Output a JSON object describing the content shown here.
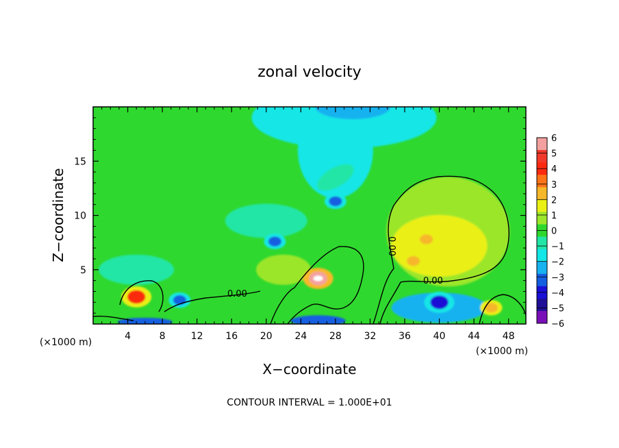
{
  "chart_data": {
    "type": "heatmap",
    "title": "zonal velocity",
    "xlabel": "X−coordinate",
    "ylabel": "Z−coordinate",
    "x_unit_left": "(×1000 m)",
    "x_unit_right": "(×1000 m)",
    "footer": "CONTOUR INTERVAL = 1.000E+01",
    "xlim": [
      0,
      50
    ],
    "ylim": [
      0,
      20
    ],
    "x_ticks": [
      4,
      8,
      12,
      16,
      20,
      24,
      28,
      32,
      36,
      40,
      44,
      48
    ],
    "x_tick_labels": [
      "4",
      "8",
      "12",
      "16",
      "20",
      "24",
      "28",
      "32",
      "36",
      "40",
      "44",
      "48"
    ],
    "y_ticks": [
      5,
      10,
      15
    ],
    "y_tick_labels": [
      "5",
      "10",
      "15"
    ],
    "contour_labels": [
      "0.00",
      "0.00",
      "0.00"
    ],
    "colorbar": {
      "levels": [
        6,
        5,
        4,
        3,
        2,
        1,
        0,
        -1,
        -2,
        -3,
        -4,
        -5,
        -6
      ],
      "labels": [
        "6",
        "5",
        "4",
        "3",
        "2",
        "1",
        "0",
        "−1",
        "−2",
        "−3",
        "−4",
        "−5",
        "−6"
      ],
      "colors": [
        "#f4a0a0",
        "#f23a2a",
        "#fb2a10",
        "#fd7418",
        "#f6b72a",
        "#eaf016",
        "#9ce62c",
        "#2fd82e",
        "#22e6a6",
        "#13e6e6",
        "#17b2f0",
        "#145ee0",
        "#1a10d6",
        "#201098",
        "#7a10b8"
      ]
    },
    "features": [
      {
        "x": 5,
        "z": 2.5,
        "value": 4
      },
      {
        "x": 10,
        "z": 2.2,
        "value": -3
      },
      {
        "x": 21,
        "z": 7.6,
        "value": -3
      },
      {
        "x": 26,
        "z": 4.2,
        "value": 6
      },
      {
        "x": 28,
        "z": 11.3,
        "value": -3
      },
      {
        "x": 38.5,
        "z": 7.8,
        "value": 3
      },
      {
        "x": 37,
        "z": 5.8,
        "value": 3
      },
      {
        "x": 40,
        "z": 2.0,
        "value": -4
      },
      {
        "x": 46,
        "z": 1.5,
        "value": 3
      }
    ]
  }
}
